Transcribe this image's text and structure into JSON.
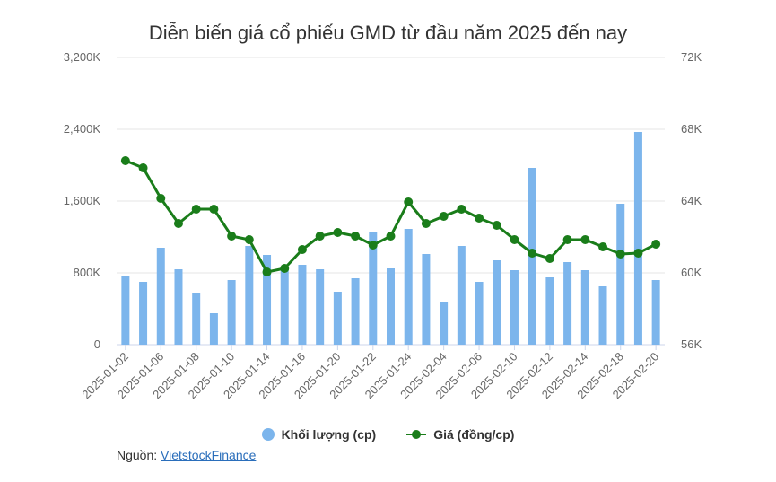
{
  "chart_data": {
    "type": "bar+line",
    "title": "Diễn biến giá cổ phiếu GMD từ đầu năm 2025 đến nay",
    "categories": [
      "2025-01-02",
      "2025-01-03",
      "2025-01-06",
      "2025-01-07",
      "2025-01-08",
      "2025-01-09",
      "2025-01-10",
      "2025-01-13",
      "2025-01-14",
      "2025-01-15",
      "2025-01-16",
      "2025-01-17",
      "2025-01-20",
      "2025-01-21",
      "2025-01-22",
      "2025-01-23",
      "2025-01-24",
      "2025-02-03",
      "2025-02-04",
      "2025-02-05",
      "2025-02-06",
      "2025-02-07",
      "2025-02-10",
      "2025-02-11",
      "2025-02-12",
      "2025-02-13",
      "2025-02-14",
      "2025-02-17",
      "2025-02-18",
      "2025-02-19",
      "2025-02-20"
    ],
    "x_tick_labels": [
      "2025-01-02",
      "2025-01-06",
      "2025-01-08",
      "2025-01-10",
      "2025-01-14",
      "2025-01-16",
      "2025-01-20",
      "2025-01-22",
      "2025-01-24",
      "2025-02-04",
      "2025-02-06",
      "2025-02-10",
      "2025-02-12",
      "2025-02-14",
      "2025-02-18",
      "2025-02-20"
    ],
    "series": [
      {
        "name": "Khối lượng (cp)",
        "type": "bar",
        "axis": "left",
        "color": "#7cb5ec",
        "values": [
          770000,
          700000,
          1080000,
          840000,
          580000,
          350000,
          720000,
          1100000,
          1000000,
          850000,
          890000,
          840000,
          590000,
          740000,
          1260000,
          850000,
          1290000,
          1010000,
          480000,
          1100000,
          700000,
          940000,
          830000,
          1970000,
          750000,
          920000,
          830000,
          650000,
          1570000,
          2370000,
          720000
        ]
      },
      {
        "name": "Giá (đồng/cp)",
        "type": "line",
        "axis": "right",
        "color": "#1a7d1a",
        "values": [
          66250,
          65850,
          64150,
          62750,
          63550,
          63550,
          62050,
          61850,
          60050,
          60250,
          61300,
          62050,
          62250,
          62050,
          61550,
          62050,
          63950,
          62750,
          63150,
          63550,
          63050,
          62650,
          61850,
          61100,
          60800,
          61850,
          61850,
          61450,
          61050,
          61100,
          61600
        ]
      }
    ],
    "y_left": {
      "min": 0,
      "max": 3200000,
      "ticks": [
        "0",
        "800K",
        "1,600K",
        "2,400K",
        "3,200K"
      ]
    },
    "y_right": {
      "min": 56000,
      "max": 72000,
      "ticks": [
        "56K",
        "60K",
        "64K",
        "68K",
        "72K"
      ]
    },
    "grid": true,
    "legend_position": "bottom"
  },
  "source": {
    "label": "Nguồn: ",
    "link_text": "VietstockFinance"
  }
}
